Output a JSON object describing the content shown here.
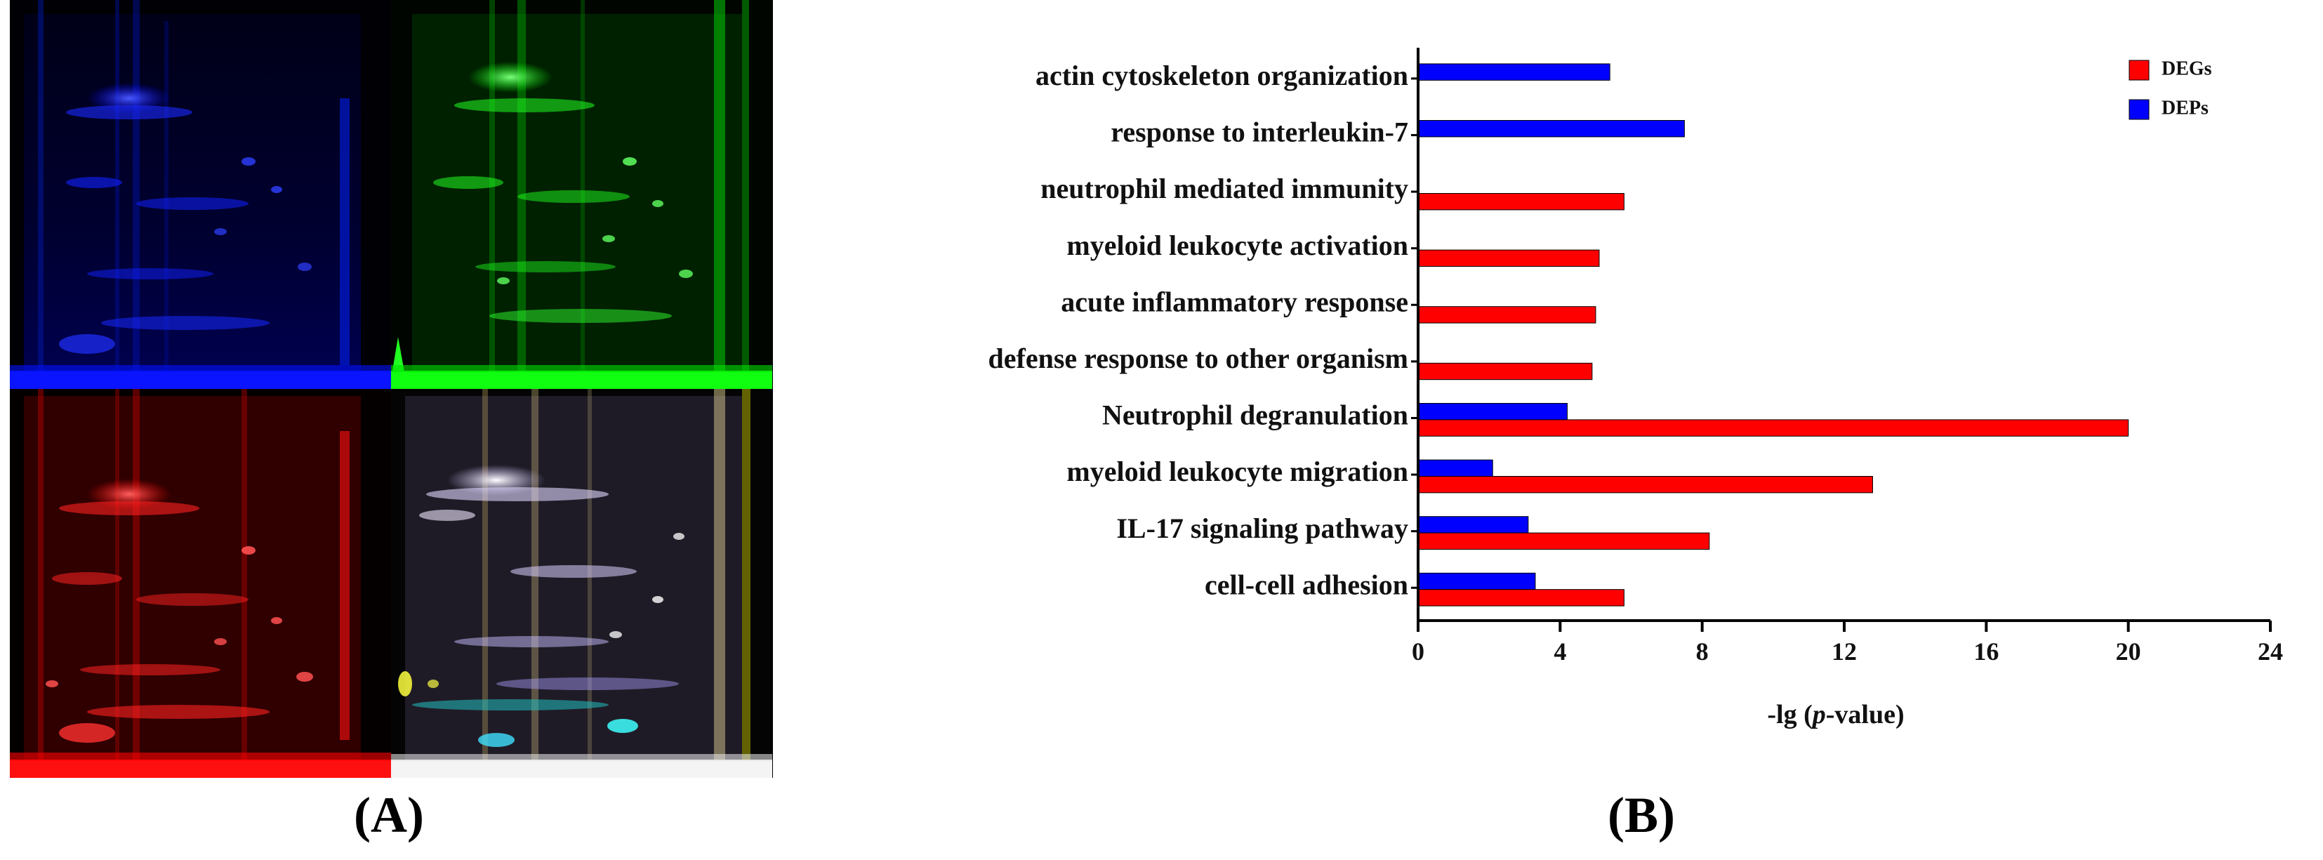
{
  "panels": {
    "a_label": "(A)",
    "b_label": "(B)"
  },
  "gel_image": {
    "channel_colors": [
      "#1010ff",
      "#10e010",
      "#ff1010",
      "#d8d0c8"
    ]
  },
  "chart_data": {
    "type": "bar",
    "orientation": "horizontal",
    "categories": [
      "actin cytoskeleton organization",
      "response to interleukin-7",
      "neutrophil mediated immunity",
      "myeloid leukocyte activation",
      "acute inflammatory response",
      "defense response to other organism",
      "Neutrophil degranulation",
      "myeloid leukocyte migration",
      "IL-17 signaling pathway",
      "cell-cell adhesion"
    ],
    "series": [
      {
        "name": "DEGs",
        "color": "#ff0000",
        "values": [
          null,
          null,
          5.8,
          5.1,
          5.0,
          4.9,
          20.0,
          12.8,
          8.2,
          5.8
        ]
      },
      {
        "name": "DEPs",
        "color": "#0000ff",
        "values": [
          5.4,
          7.5,
          null,
          null,
          null,
          null,
          4.2,
          2.1,
          3.1,
          3.3
        ]
      }
    ],
    "xlabel_prefix": "-lg (",
    "xlabel_italic": "p",
    "xlabel_suffix": "-value)",
    "xlim": [
      0,
      24
    ],
    "xticks": [
      0,
      4,
      8,
      12,
      16,
      20,
      24
    ],
    "grid": false,
    "legend_position": "top-right"
  }
}
